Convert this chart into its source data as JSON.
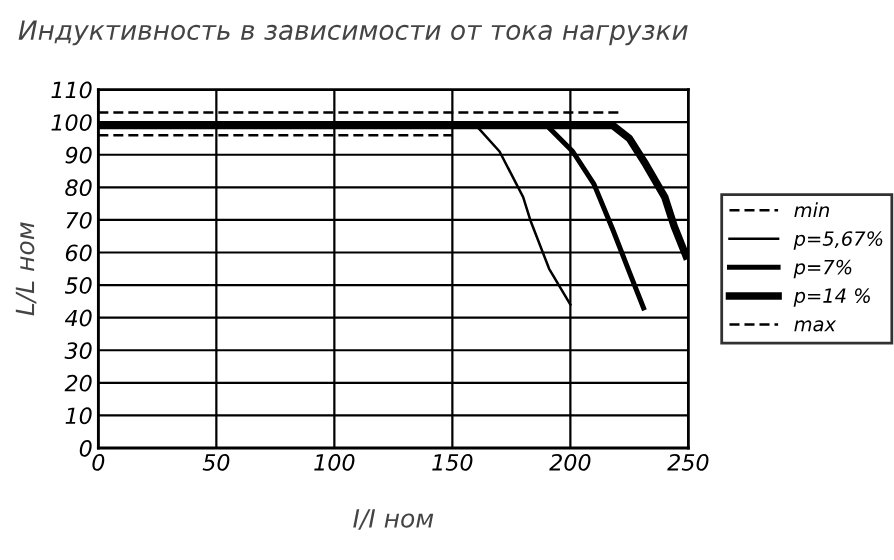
{
  "chart_data": {
    "type": "line",
    "title": "Индуктивность в зависимости от тока нагрузки",
    "xlabel": "I/I ном",
    "ylabel": "L/L ном",
    "xlim": [
      0,
      250
    ],
    "xticks": [
      0,
      50,
      100,
      150,
      200,
      250
    ],
    "ylim": [
      0,
      110
    ],
    "yticks": [
      0,
      10,
      20,
      30,
      40,
      50,
      60,
      70,
      80,
      90,
      100,
      110
    ],
    "grid": true,
    "legend": "right",
    "marker": "none",
    "series": [
      {
        "name": "min",
        "color": "#000000",
        "line_style": "dashed",
        "x": [
          0,
          150
        ],
        "values": [
          96,
          96
        ]
      },
      {
        "name": "р=5,67%",
        "color": "#000000",
        "line_style": "solid",
        "x": [
          0,
          160,
          170,
          180,
          183,
          191,
          200
        ],
        "values": [
          99,
          99,
          91,
          77,
          70,
          55,
          44
        ]
      },
      {
        "name": "р=7%",
        "color": "#000000",
        "line_style": "solid",
        "x": [
          0,
          190,
          201,
          210,
          218,
          225,
          231
        ],
        "values": [
          99,
          99,
          91,
          81,
          67,
          54,
          43
        ]
      },
      {
        "name": "р=14 %",
        "color": "#000000",
        "line_style": "solid",
        "x": [
          0,
          218,
          225,
          232,
          240,
          244,
          249
        ],
        "values": [
          99,
          99,
          95,
          87,
          77,
          68,
          59
        ]
      },
      {
        "name": "max",
        "color": "#000000",
        "line_style": "dashed",
        "x": [
          0,
          222
        ],
        "values": [
          103,
          103
        ]
      }
    ]
  }
}
